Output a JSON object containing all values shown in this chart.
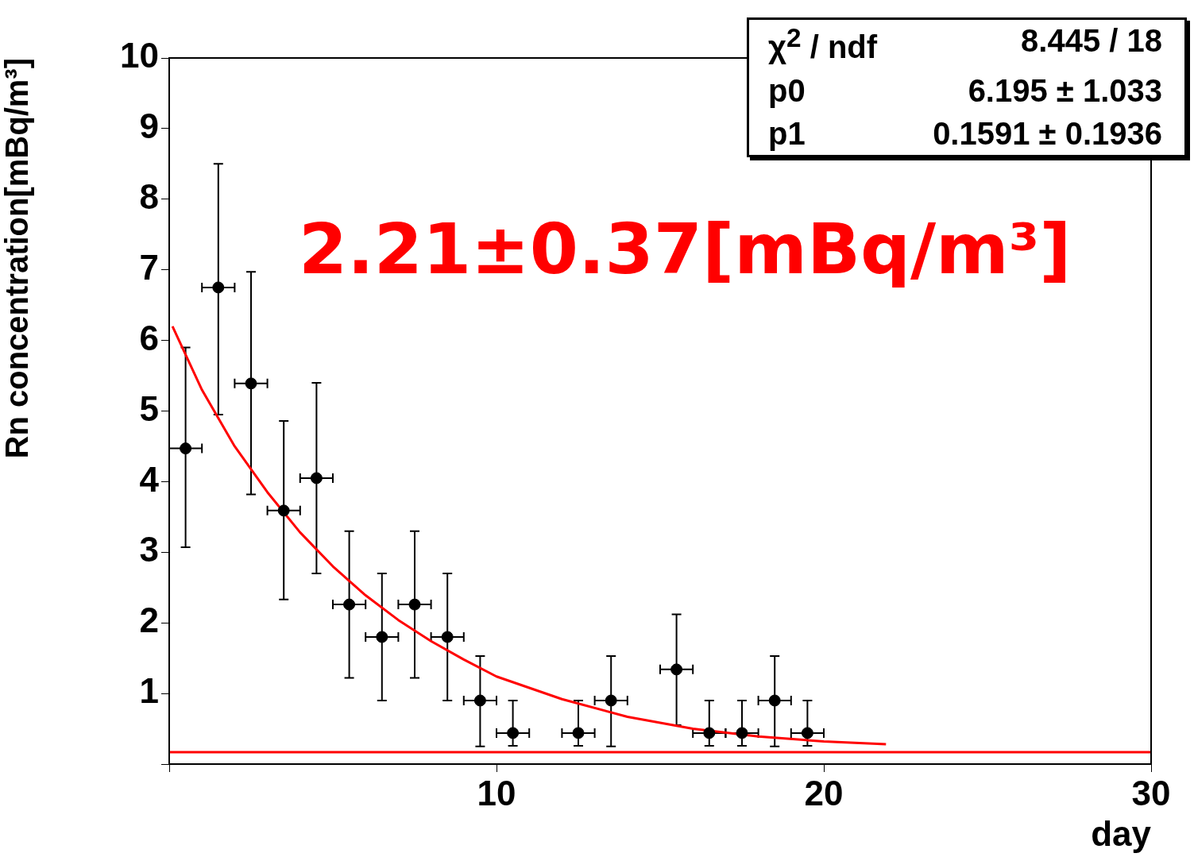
{
  "chart_data": {
    "type": "scatter",
    "xlabel": "day",
    "ylabel": "Rn concentration[mBq/m³]",
    "xlim": [
      0,
      30
    ],
    "xticks": [
      {
        "value": 0,
        "label": null
      },
      10,
      20,
      30
    ],
    "ylim": [
      0,
      10
    ],
    "yticks": [
      {
        "value": 0,
        "label": null
      },
      1,
      2,
      3,
      4,
      5,
      6,
      7,
      8,
      9,
      10
    ],
    "grid": false,
    "legend": false,
    "marker": "circle",
    "series": [
      {
        "color": "#000000",
        "x": [
          0.5,
          1.5,
          2.5,
          3.5,
          4.5,
          5.5,
          6.5,
          7.5,
          8.5,
          9.5,
          10.5,
          12.5,
          13.5,
          15.5,
          16.5,
          17.5,
          18.5,
          19.5
        ],
        "values": [
          4.47,
          6.75,
          5.39,
          3.59,
          4.05,
          2.26,
          1.8,
          2.26,
          1.8,
          0.9,
          0.44,
          0.44,
          0.9,
          1.34,
          0.44,
          0.44,
          0.9,
          0.44
        ],
        "errors": [
          [
            3.07,
            5.9
          ],
          [
            4.95,
            8.5
          ],
          [
            3.82,
            6.97
          ],
          [
            2.33,
            4.86
          ],
          [
            2.7,
            5.4
          ],
          [
            1.22,
            3.3
          ],
          [
            0.9,
            2.7
          ],
          [
            1.22,
            3.3
          ],
          [
            0.9,
            2.7
          ],
          [
            0.25,
            1.53
          ],
          [
            0.26,
            0.9
          ],
          [
            0.26,
            0.9
          ],
          [
            0.25,
            1.53
          ],
          [
            0.55,
            2.12
          ],
          [
            0.26,
            0.9
          ],
          [
            0.26,
            0.9
          ],
          [
            0.25,
            1.53
          ],
          [
            0.26,
            0.9
          ]
        ],
        "xerrors": [
          0.5,
          0.5,
          0.5,
          0.5,
          0.5,
          0.5,
          0.5,
          0.5,
          0.5,
          0.5,
          0.5,
          0.5,
          0.5,
          0.5,
          0.5,
          0.5,
          0.5,
          0.5
        ]
      },
      {
        "type": "line",
        "color": "#ff0000",
        "marker": "none",
        "x": [
          0.1,
          1,
          2,
          3,
          4,
          5,
          6,
          7,
          8,
          9,
          10,
          12,
          14,
          16,
          18,
          20,
          21.9
        ],
        "values": [
          6.2,
          5.3,
          4.5,
          3.85,
          3.28,
          2.8,
          2.39,
          2.04,
          1.74,
          1.48,
          1.24,
          0.92,
          0.67,
          0.5,
          0.39,
          0.32,
          0.28
        ]
      }
    ],
    "ref_lines": [
      {
        "axis": "y",
        "value": 0.17,
        "color": "#ff0000"
      }
    ],
    "annotations": [
      "χ$^{2}$ / ndf",
      "8.445 / 18",
      "p0",
      "6.195 ± 1.033",
      "p1",
      "0.1591 ± 0.1936",
      "2.21±0.37[mBq/m³]"
    ]
  }
}
